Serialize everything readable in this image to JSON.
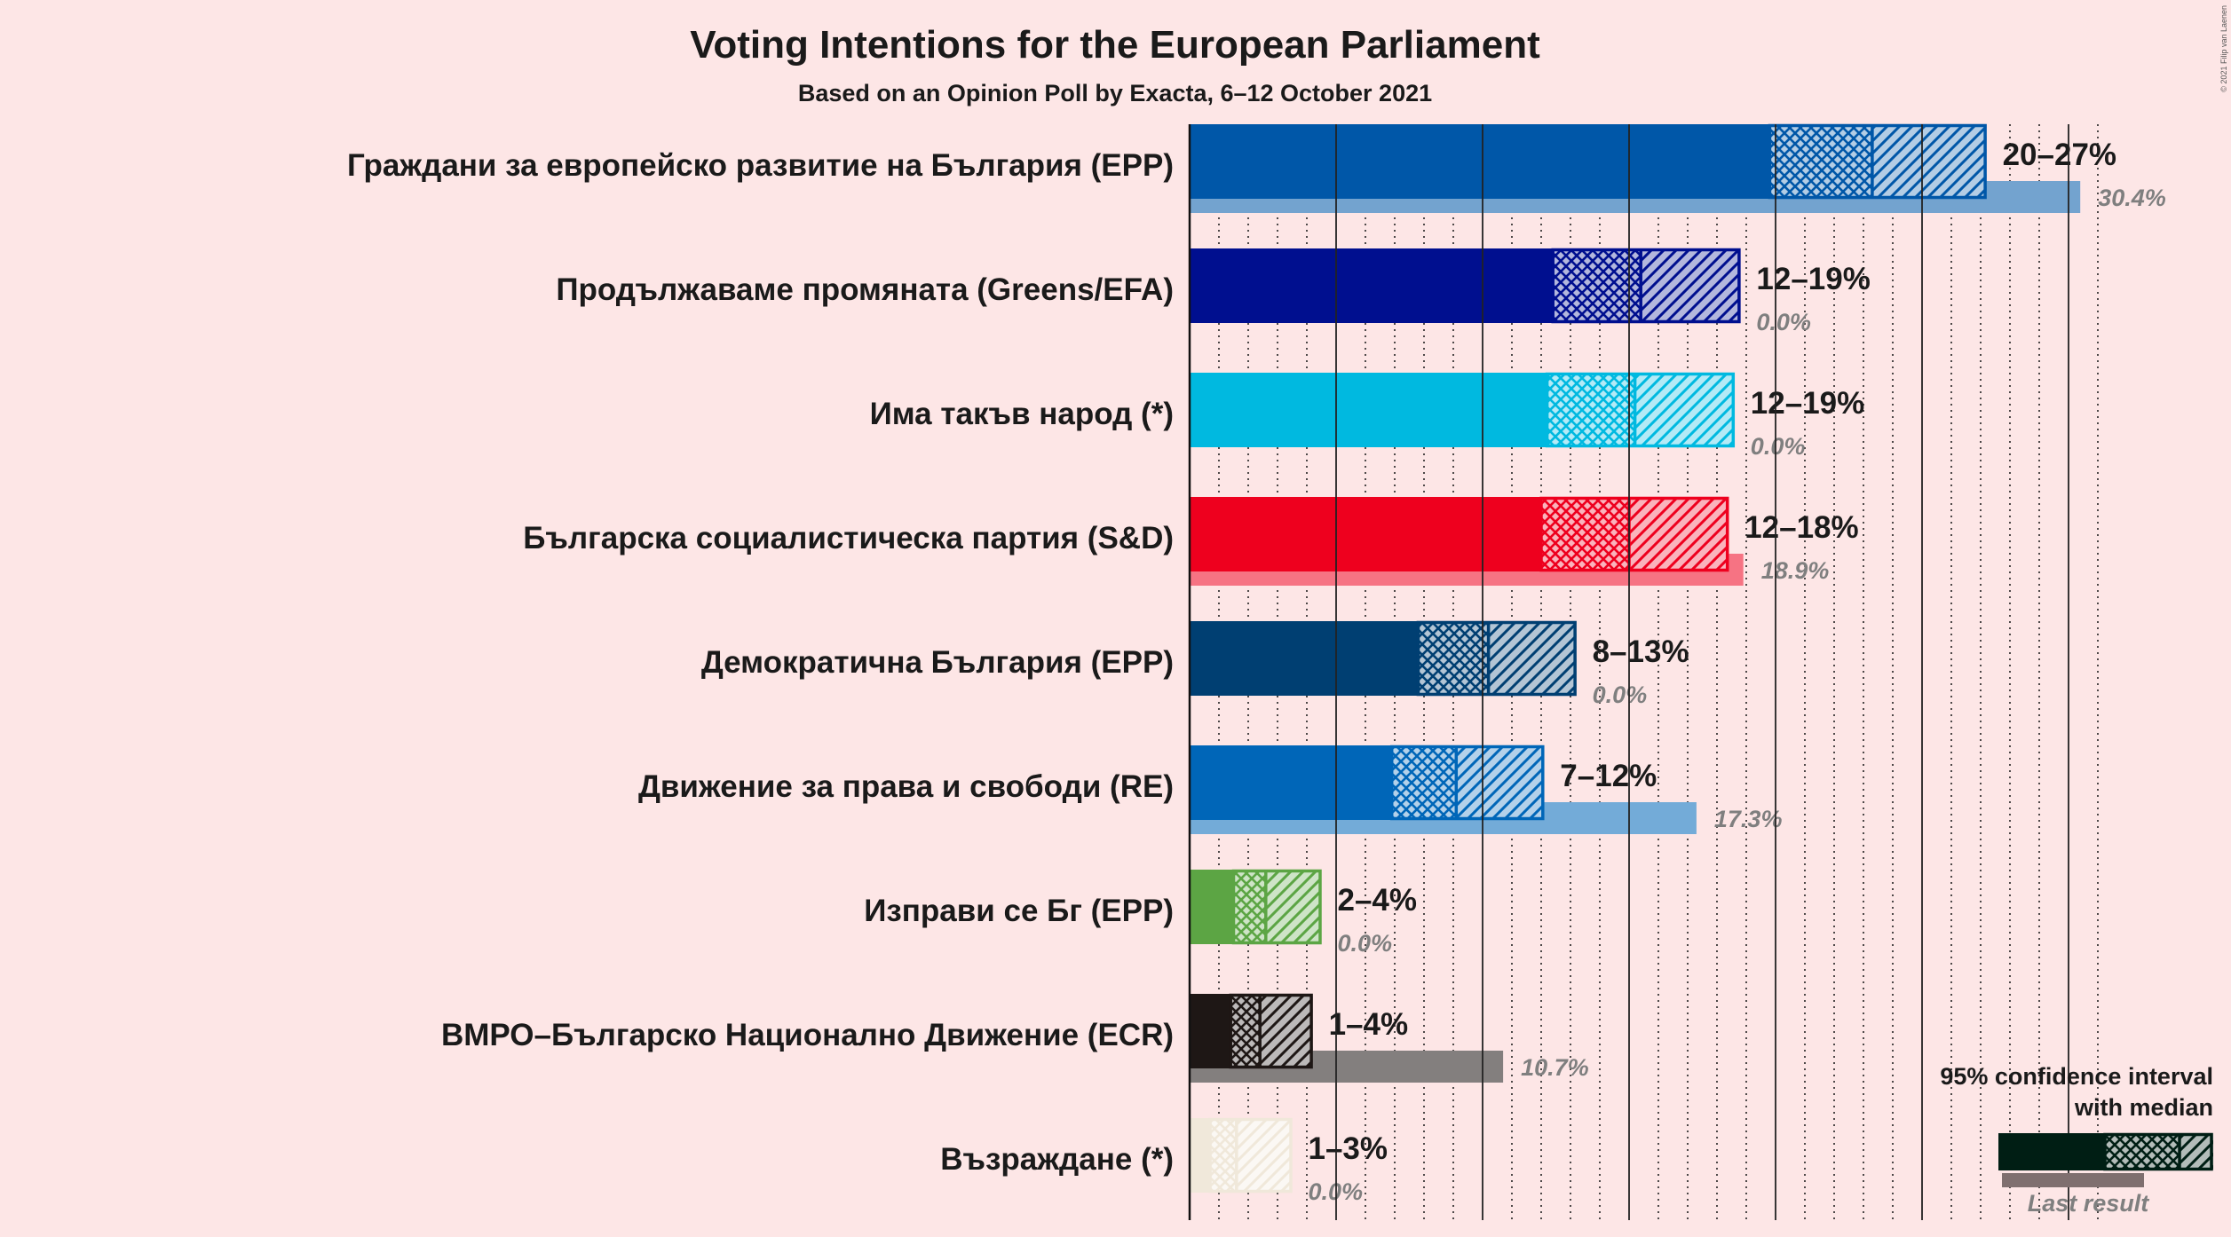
{
  "copyright": "© 2021 Filip van Laenen",
  "chart_data": {
    "type": "bar",
    "orientation": "horizontal",
    "title": "Voting Intentions for the European Parliament",
    "subtitle": "Based on an Opinion Poll by Exacta, 6–12 October 2021",
    "xlim": [
      0,
      31
    ],
    "gridlines": "vertical, every 1% (dotted), every 5% (solid)",
    "series": [
      {
        "name": "Граждани за европейско развитие на България (EPP)",
        "color": "#0057a8",
        "ci_low": 19.8,
        "median": 23.3,
        "ci_high": 27.2,
        "range_label": "20–27%",
        "last_result": 30.4,
        "last_label": "30.4%"
      },
      {
        "name": "Продължаваме промяната (Greens/EFA)",
        "color": "#000f8f",
        "ci_low": 12.4,
        "median": 15.4,
        "ci_high": 18.8,
        "range_label": "12–19%",
        "last_result": 0,
        "last_label": "0.0%"
      },
      {
        "name": "Има такъв народ (*)",
        "color": "#00b9e0",
        "ci_low": 12.2,
        "median": 15.2,
        "ci_high": 18.6,
        "range_label": "12–19%",
        "last_result": 0,
        "last_label": "0.0%"
      },
      {
        "name": "Българска социалистическа партия (S&D)",
        "color": "#ee001e",
        "ci_low": 12.0,
        "median": 15.0,
        "ci_high": 18.4,
        "range_label": "12–18%",
        "last_result": 18.9,
        "last_label": "18.9%"
      },
      {
        "name": "Демократична България (EPP)",
        "color": "#003f72",
        "ci_low": 7.8,
        "median": 10.2,
        "ci_high": 13.2,
        "range_label": "8–13%",
        "last_result": 0,
        "last_label": "0.0%"
      },
      {
        "name": "Движение за права и свободи (RE)",
        "color": "#0066b8",
        "ci_low": 6.9,
        "median": 9.1,
        "ci_high": 12.1,
        "range_label": "7–12%",
        "last_result": 17.3,
        "last_label": "17.3%"
      },
      {
        "name": "Изправи се Бг (EPP)",
        "color": "#5ca544",
        "ci_low": 1.5,
        "median": 2.6,
        "ci_high": 4.5,
        "range_label": "2–4%",
        "last_result": 0,
        "last_label": "0.0%"
      },
      {
        "name": "ВМРО–Българско Национално Движение (ECR)",
        "color": "#1e1715",
        "ci_low": 1.4,
        "median": 2.4,
        "ci_high": 4.2,
        "range_label": "1–4%",
        "last_result": 10.7,
        "last_label": "10.7%"
      },
      {
        "name": "Възраждане (*)",
        "color": "#f0e8da",
        "ci_low": 0.7,
        "median": 1.6,
        "ci_high": 3.5,
        "range_label": "1–3%",
        "last_result": 0,
        "last_label": "0.0%"
      }
    ]
  },
  "legend": {
    "line1": "95% confidence interval",
    "line2": "with median",
    "last_result_label": "Last result",
    "color": "#001e14"
  }
}
